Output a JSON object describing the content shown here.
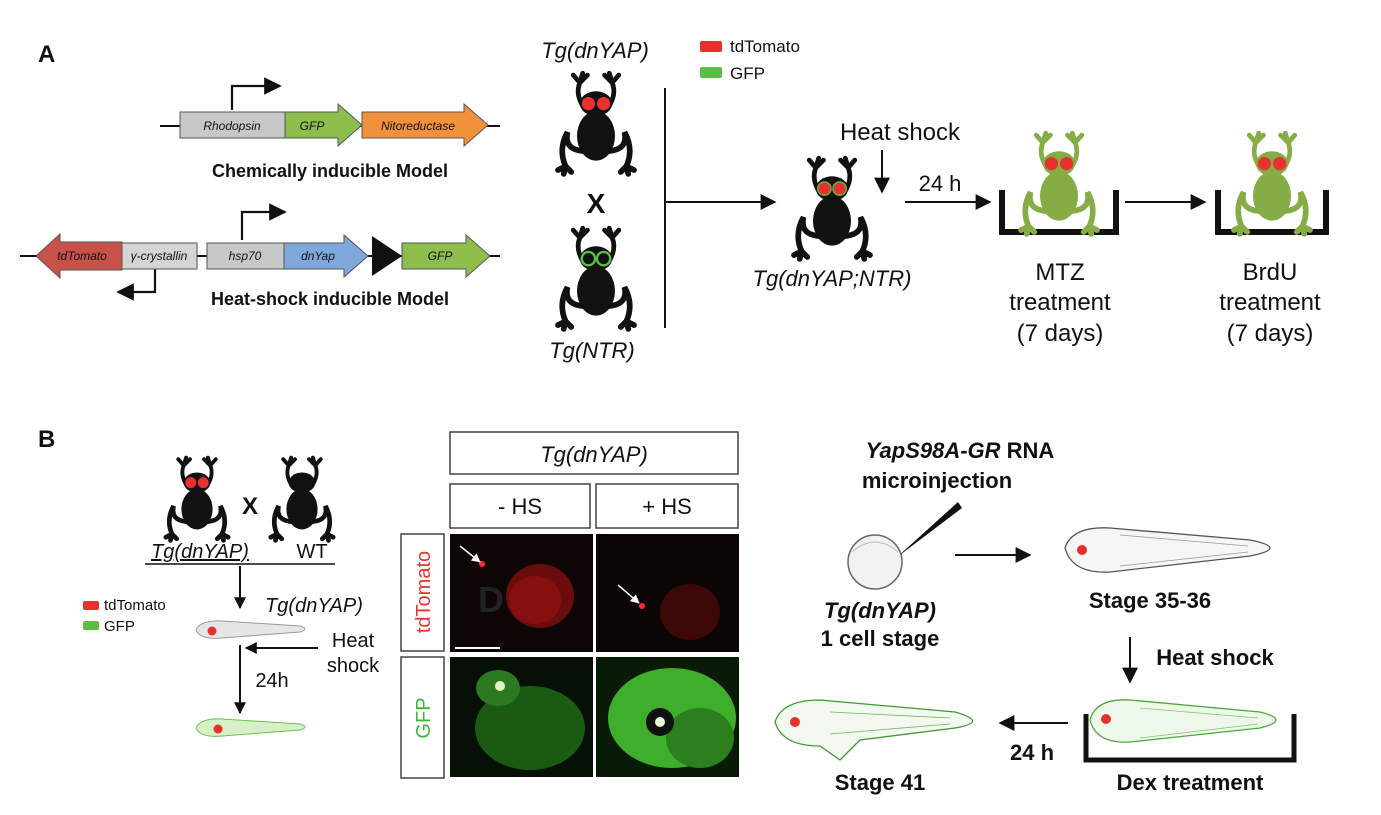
{
  "panel_a": {
    "letter": "A",
    "construct_chem": {
      "promoter": "Rhodopsin",
      "gene1": "GFP",
      "gene2": "Nitoreductase",
      "caption": "Chemically inducible Model"
    },
    "construct_hs": {
      "gene_left": "tdTomato",
      "promoter_left": "γ-crystallin",
      "promoter": "hsp70",
      "gene1": "dnYap",
      "gene2": "GFP",
      "caption": "Heat-shock inducible Model"
    },
    "frog_top_label": "Tg(dnYAP)",
    "cross_symbol": "X",
    "frog_bottom_label": "Tg(NTR)",
    "legend": [
      {
        "label": "tdTomato",
        "color": "#e8302e"
      },
      {
        "label": "GFP",
        "color": "#5cbf45"
      }
    ],
    "heat_shock": "Heat shock",
    "time_label": "24 h",
    "cross_label": "Tg(dnYAP;NTR)",
    "mtz": [
      "MTZ",
      "treatment",
      "(7 days)"
    ],
    "brdu": [
      "BrdU",
      "treatment",
      "(7 days)"
    ]
  },
  "panel_b": {
    "letter": "B",
    "frog_label": "Tg(dnYAP)",
    "cross_symbol": "X",
    "wt_label": "WT",
    "legend": [
      {
        "label": "tdTomato",
        "color": "#e8302e"
      },
      {
        "label": "GFP",
        "color": "#5cbf45"
      }
    ],
    "tadpole_label": "Tg(dnYAP)",
    "heat": [
      "Heat",
      "shock"
    ],
    "time_label": "24h",
    "grid": {
      "title": "Tg(dnYAP)",
      "col_minus": "- HS",
      "col_plus": "+ HS",
      "row_red": "tdTomato",
      "row_green": "GFP",
      "panel_letter": "D"
    },
    "injection": {
      "title_italic": "YapS98A-GR",
      "title_rest": " RNA",
      "line2": "microinjection"
    },
    "egg_label": [
      "Tg(dnYAP)",
      "1 cell stage"
    ],
    "stage_35": "Stage 35-36",
    "heat_shock": "Heat shock",
    "time_label2": "24 h",
    "stage_41": "Stage 41",
    "dex": "Dex treatment"
  }
}
